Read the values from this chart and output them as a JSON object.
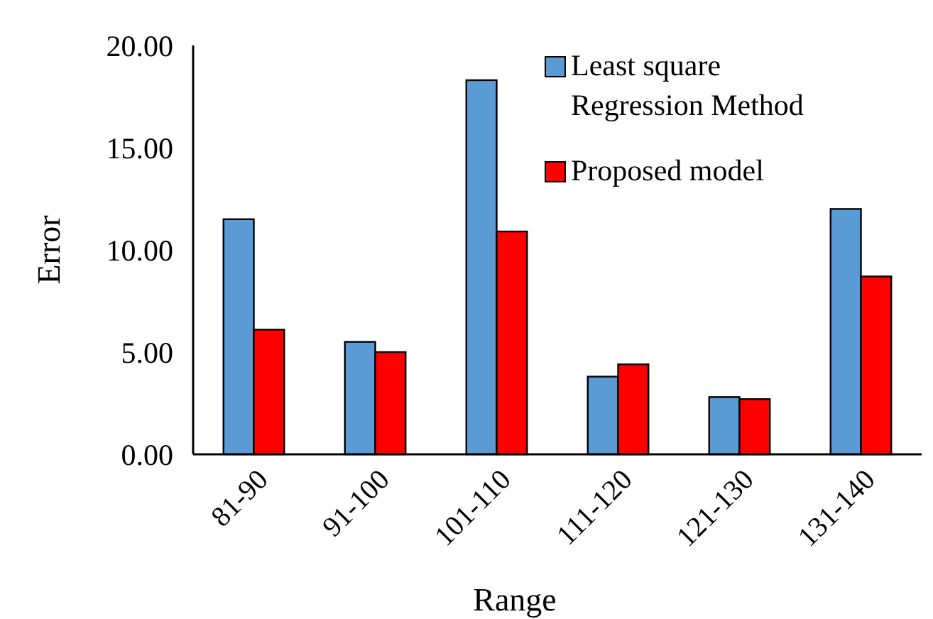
{
  "chart_data": {
    "type": "bar",
    "xlabel": "Range",
    "ylabel": "Error",
    "categories": [
      "81-90",
      "91-100",
      "101-110",
      "111-120",
      "121-130",
      "131-140"
    ],
    "series": [
      {
        "name": "Least square Regression Method",
        "color": "#5b9bd5",
        "values": [
          11.5,
          5.5,
          18.3,
          3.8,
          2.8,
          12.0
        ]
      },
      {
        "name": "Proposed model",
        "color": "#ff0000",
        "values": [
          6.1,
          5.0,
          10.9,
          4.4,
          2.7,
          8.7
        ]
      }
    ],
    "ylim": [
      0,
      20
    ],
    "yticks": [
      {
        "value": 0,
        "label": "0.00"
      },
      {
        "value": 5,
        "label": "5.00"
      },
      {
        "value": 10,
        "label": "10.00"
      },
      {
        "value": 15,
        "label": "15.00"
      },
      {
        "value": 20,
        "label": "20.00"
      }
    ],
    "grid": false,
    "legend": "top right"
  }
}
